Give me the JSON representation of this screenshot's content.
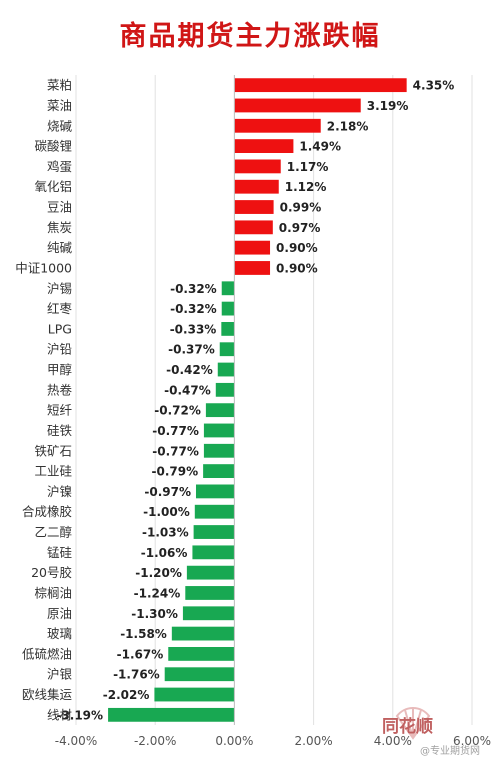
{
  "chart_data": {
    "type": "bar",
    "orientation": "horizontal",
    "title": "商品期货主力涨跌幅",
    "categories": [
      "菜粕",
      "菜油",
      "烧碱",
      "碳酸锂",
      "鸡蛋",
      "氧化铝",
      "豆油",
      "焦炭",
      "纯碱",
      "中证1000",
      "沪锡",
      "红枣",
      "LPG",
      "沪铅",
      "甲醇",
      "热卷",
      "短纤",
      "硅铁",
      "铁矿石",
      "工业硅",
      "沪镍",
      "合成橡胶",
      "乙二醇",
      "锰硅",
      "20号胶",
      "棕榈油",
      "原油",
      "玻璃",
      "低硫燃油",
      "沪银",
      "欧线集运",
      "线材"
    ],
    "values": [
      4.35,
      3.19,
      2.18,
      1.49,
      1.17,
      1.12,
      0.99,
      0.97,
      0.9,
      0.9,
      -0.32,
      -0.32,
      -0.33,
      -0.37,
      -0.42,
      -0.47,
      -0.72,
      -0.77,
      -0.77,
      -0.79,
      -0.97,
      -1.0,
      -1.03,
      -1.06,
      -1.2,
      -1.24,
      -1.3,
      -1.58,
      -1.67,
      -1.76,
      -2.02,
      -3.19
    ],
    "value_labels": [
      "4.35%",
      "3.19%",
      "2.18%",
      "1.49%",
      "1.17%",
      "1.12%",
      "0.99%",
      "0.97%",
      "0.90%",
      "0.90%",
      "-0.32%",
      "-0.32%",
      "-0.33%",
      "-0.37%",
      "-0.42%",
      "-0.47%",
      "-0.72%",
      "-0.77%",
      "-0.77%",
      "-0.79%",
      "-0.97%",
      "-1.00%",
      "-1.03%",
      "-1.06%",
      "-1.20%",
      "-1.24%",
      "-1.30%",
      "-1.58%",
      "-1.67%",
      "-1.76%",
      "-2.02%",
      "-3.19%"
    ],
    "xlim": [
      -4,
      6
    ],
    "x_ticks": [
      -4,
      -2,
      0,
      2,
      4,
      6
    ],
    "x_tick_labels": [
      "-4.00%",
      "-2.00%",
      "0.00%",
      "2.00%",
      "4.00%",
      "6.00%"
    ],
    "grid": true,
    "legend": "none",
    "colors": {
      "positive": "#ee1111",
      "negative": "#18a852",
      "title": "#d01616",
      "grid": "#e2e2e2",
      "axis": "#bfbfbf"
    }
  },
  "watermark": {
    "brand": "同花顺",
    "sub": "@专业期货网",
    "icon": "fan-logo-icon"
  }
}
